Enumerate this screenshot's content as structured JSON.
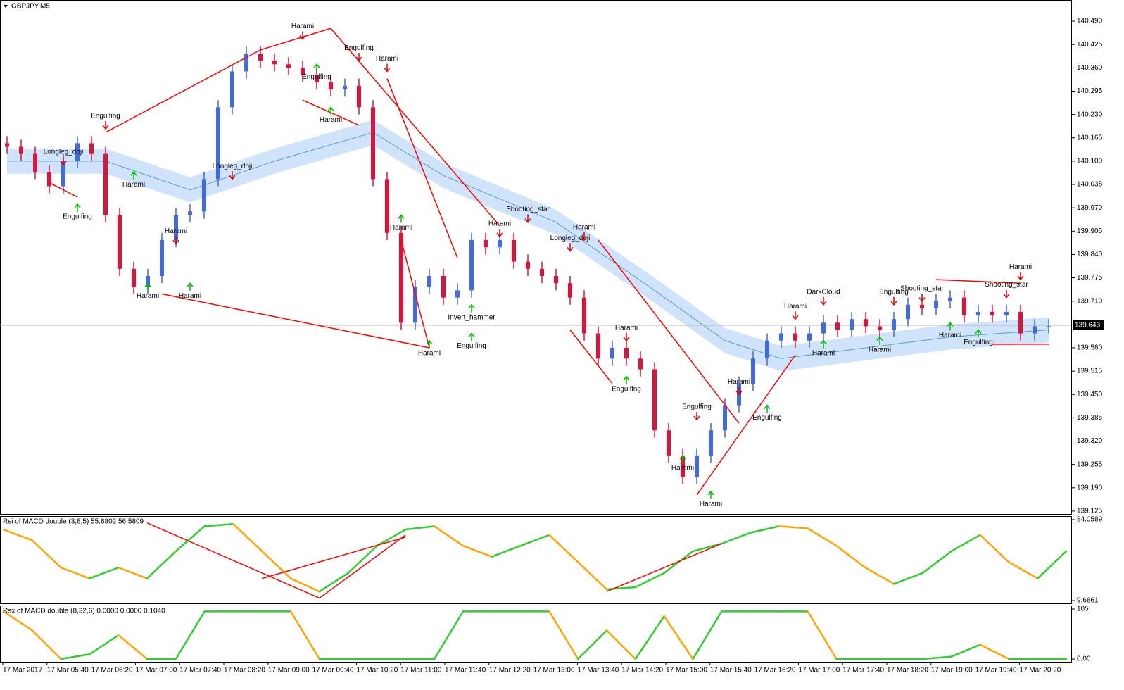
{
  "chart_data": [
    {
      "type": "candlestick",
      "title": "GBPJPY,M5",
      "ylim": [
        139.117,
        140.549
      ],
      "yticks": [
        {
          "value": 140.49,
          "label": "140.490"
        },
        {
          "value": 140.425,
          "label": "140.425"
        },
        {
          "value": 140.36,
          "label": "140.360"
        },
        {
          "value": 140.295,
          "label": "140.295"
        },
        {
          "value": 140.23,
          "label": "140.230"
        },
        {
          "value": 140.165,
          "label": "140.165"
        },
        {
          "value": 140.1,
          "label": "140.100"
        },
        {
          "value": 140.035,
          "label": "140.035"
        },
        {
          "value": 139.97,
          "label": "139.970"
        },
        {
          "value": 139.905,
          "label": "139.905"
        },
        {
          "value": 139.84,
          "label": "139.840"
        },
        {
          "value": 139.775,
          "label": "139.775"
        },
        {
          "value": 139.71,
          "label": "139.710"
        },
        {
          "value": 139.58,
          "label": "139.580"
        },
        {
          "value": 139.515,
          "label": "139.515"
        },
        {
          "value": 139.45,
          "label": "139.450"
        },
        {
          "value": 139.385,
          "label": "139.385"
        },
        {
          "value": 139.32,
          "label": "139.320"
        },
        {
          "value": 139.255,
          "label": "139.255"
        },
        {
          "value": 139.19,
          "label": "139.190"
        },
        {
          "value": 139.125,
          "label": "139.125"
        }
      ],
      "current_price": {
        "value": 139.643,
        "label": "139.643"
      },
      "up_color": "#4169e1",
      "down_color": "#dc143c",
      "candles": [
        [
          140.15,
          140.17,
          140.12,
          140.14
        ],
        [
          140.14,
          140.16,
          140.1,
          140.12
        ],
        [
          140.12,
          140.14,
          140.05,
          140.07
        ],
        [
          140.07,
          140.09,
          140.01,
          140.03
        ],
        [
          140.03,
          140.12,
          140.01,
          140.1
        ],
        [
          140.1,
          140.17,
          140.08,
          140.15
        ],
        [
          140.15,
          140.17,
          140.1,
          140.12
        ],
        [
          140.12,
          140.14,
          139.93,
          139.95
        ],
        [
          139.95,
          139.97,
          139.78,
          139.8
        ],
        [
          139.8,
          139.82,
          139.73,
          139.75
        ],
        [
          139.75,
          139.8,
          139.73,
          139.78
        ],
        [
          139.78,
          139.9,
          139.76,
          139.88
        ],
        [
          139.88,
          139.97,
          139.86,
          139.95
        ],
        [
          139.95,
          139.98,
          139.93,
          139.96
        ],
        [
          139.96,
          140.07,
          139.94,
          140.05
        ],
        [
          140.05,
          140.27,
          140.03,
          140.25
        ],
        [
          140.25,
          140.37,
          140.23,
          140.35
        ],
        [
          140.35,
          140.42,
          140.33,
          140.4
        ],
        [
          140.4,
          140.42,
          140.36,
          140.38
        ],
        [
          140.38,
          140.4,
          140.35,
          140.37
        ],
        [
          140.37,
          140.39,
          140.34,
          140.36
        ],
        [
          140.36,
          140.38,
          140.32,
          140.34
        ],
        [
          140.34,
          140.36,
          140.3,
          140.32
        ],
        [
          140.32,
          140.34,
          140.28,
          140.3
        ],
        [
          140.3,
          140.33,
          140.28,
          140.31
        ],
        [
          140.31,
          140.33,
          140.23,
          140.25
        ],
        [
          140.25,
          140.27,
          140.03,
          140.05
        ],
        [
          140.05,
          140.07,
          139.88,
          139.9
        ],
        [
          139.9,
          139.92,
          139.63,
          139.65
        ],
        [
          139.65,
          139.77,
          139.63,
          139.75
        ],
        [
          139.75,
          139.8,
          139.73,
          139.78
        ],
        [
          139.78,
          139.8,
          139.7,
          139.72
        ],
        [
          139.72,
          139.76,
          139.7,
          139.74
        ],
        [
          139.74,
          139.9,
          139.72,
          139.88
        ],
        [
          139.88,
          139.9,
          139.84,
          139.86
        ],
        [
          139.86,
          139.9,
          139.84,
          139.88
        ],
        [
          139.88,
          139.9,
          139.8,
          139.82
        ],
        [
          139.82,
          139.84,
          139.78,
          139.8
        ],
        [
          139.8,
          139.82,
          139.76,
          139.78
        ],
        [
          139.78,
          139.8,
          139.74,
          139.76
        ],
        [
          139.76,
          139.78,
          139.7,
          139.72
        ],
        [
          139.72,
          139.74,
          139.6,
          139.62
        ],
        [
          139.62,
          139.64,
          139.53,
          139.55
        ],
        [
          139.55,
          139.6,
          139.53,
          139.58
        ],
        [
          139.58,
          139.6,
          139.53,
          139.55
        ],
        [
          139.55,
          139.57,
          139.5,
          139.52
        ],
        [
          139.52,
          139.54,
          139.33,
          139.35
        ],
        [
          139.35,
          139.37,
          139.26,
          139.28
        ],
        [
          139.28,
          139.3,
          139.2,
          139.22
        ],
        [
          139.22,
          139.3,
          139.2,
          139.28
        ],
        [
          139.28,
          139.37,
          139.26,
          139.35
        ],
        [
          139.35,
          139.44,
          139.33,
          139.42
        ],
        [
          139.42,
          139.5,
          139.4,
          139.48
        ],
        [
          139.48,
          139.57,
          139.46,
          139.55
        ],
        [
          139.55,
          139.62,
          139.53,
          139.6
        ],
        [
          139.6,
          139.64,
          139.58,
          139.62
        ],
        [
          139.62,
          139.64,
          139.58,
          139.6
        ],
        [
          139.6,
          139.64,
          139.58,
          139.62
        ],
        [
          139.62,
          139.67,
          139.6,
          139.65
        ],
        [
          139.65,
          139.67,
          139.61,
          139.63
        ],
        [
          139.63,
          139.68,
          139.61,
          139.66
        ],
        [
          139.66,
          139.68,
          139.62,
          139.64
        ],
        [
          139.64,
          139.66,
          139.61,
          139.63
        ],
        [
          139.63,
          139.68,
          139.61,
          139.66
        ],
        [
          139.66,
          139.72,
          139.64,
          139.7
        ],
        [
          139.7,
          139.72,
          139.67,
          139.69
        ],
        [
          139.69,
          139.73,
          139.67,
          139.71
        ],
        [
          139.71,
          139.74,
          139.69,
          139.72
        ],
        [
          139.72,
          139.74,
          139.65,
          139.67
        ],
        [
          139.67,
          139.7,
          139.65,
          139.68
        ],
        [
          139.68,
          139.7,
          139.65,
          139.67
        ],
        [
          139.67,
          139.7,
          139.65,
          139.68
        ],
        [
          139.68,
          139.7,
          139.6,
          139.62
        ],
        [
          139.62,
          139.66,
          139.6,
          139.64
        ],
        [
          139.64,
          139.66,
          139.62,
          139.64
        ]
      ],
      "envelope": {
        "x": [
          0,
          7,
          13,
          19,
          26,
          31,
          39,
          46,
          51,
          55,
          61,
          67,
          74
        ],
        "middle": [
          140.1,
          140.1,
          140.02,
          140.1,
          140.18,
          140.06,
          139.93,
          139.74,
          139.6,
          139.55,
          139.58,
          139.61,
          139.63
        ],
        "upper": [
          140.135,
          140.135,
          140.055,
          140.135,
          140.215,
          140.095,
          139.965,
          139.775,
          139.635,
          139.585,
          139.615,
          139.645,
          139.665
        ],
        "lower": [
          140.065,
          140.065,
          139.985,
          140.065,
          140.145,
          140.025,
          139.895,
          139.705,
          139.565,
          139.515,
          139.545,
          139.575,
          139.595
        ],
        "color": "#cfe3fb",
        "line_color": "#5aa0c8"
      },
      "trendlines": [
        [
          7,
          140.18,
          18,
          140.41
        ],
        [
          18,
          140.41,
          23,
          140.47
        ],
        [
          23,
          140.47,
          35,
          139.92
        ],
        [
          27,
          140.33,
          32,
          139.83
        ],
        [
          11,
          139.73,
          30,
          139.58
        ],
        [
          30,
          139.58,
          28,
          139.88
        ],
        [
          42,
          139.88,
          52,
          139.37
        ],
        [
          40,
          139.63,
          43,
          139.48
        ],
        [
          49,
          139.17,
          56,
          139.56
        ],
        [
          66,
          139.77,
          72,
          139.76
        ],
        [
          70,
          139.59,
          74,
          139.59
        ],
        [
          3,
          140.04,
          5,
          140.0
        ],
        [
          21,
          140.27,
          25,
          140.2
        ]
      ],
      "trend_color": "#ff0000",
      "annotations": [
        {
          "text": "Engulfing",
          "i": 7,
          "price": 140.19,
          "dir": "down"
        },
        {
          "text": "Longleg_doji",
          "i": 4,
          "price": 140.09,
          "dir": "down"
        },
        {
          "text": "Engulfing",
          "i": 5,
          "price": 139.98,
          "dir": "up"
        },
        {
          "text": "Harami",
          "i": 9,
          "price": 140.07,
          "dir": "up"
        },
        {
          "text": "Longleg_doji",
          "i": 16,
          "price": 140.05,
          "dir": "down"
        },
        {
          "text": "Harami",
          "i": 12,
          "price": 139.87,
          "dir": "down"
        },
        {
          "text": "Harami",
          "i": 10,
          "price": 139.76,
          "dir": "up"
        },
        {
          "text": "Harami",
          "i": 13,
          "price": 139.76,
          "dir": "up"
        },
        {
          "text": "Harami",
          "i": 21,
          "price": 140.44,
          "dir": "down"
        },
        {
          "text": "Engulfing",
          "i": 22,
          "price": 140.37,
          "dir": "up"
        },
        {
          "text": "Engulfing",
          "i": 25,
          "price": 140.38,
          "dir": "down"
        },
        {
          "text": "Harami",
          "i": 27,
          "price": 140.35,
          "dir": "down"
        },
        {
          "text": "Harami",
          "i": 23,
          "price": 140.25,
          "dir": "up"
        },
        {
          "text": "Harami",
          "i": 28,
          "price": 139.95,
          "dir": "up"
        },
        {
          "text": "Harami",
          "i": 30,
          "price": 139.6,
          "dir": "up"
        },
        {
          "text": "Invert_hammer",
          "i": 33,
          "price": 139.7,
          "dir": "up"
        },
        {
          "text": "Engulfing",
          "i": 33,
          "price": 139.62,
          "dir": "up"
        },
        {
          "text": "Harami",
          "i": 35,
          "price": 139.89,
          "dir": "down"
        },
        {
          "text": "Shooting_star",
          "i": 37,
          "price": 139.93,
          "dir": "down"
        },
        {
          "text": "Longleg_doji",
          "i": 40,
          "price": 139.85,
          "dir": "down"
        },
        {
          "text": "Harami",
          "i": 41,
          "price": 139.88,
          "dir": "down"
        },
        {
          "text": "Harami",
          "i": 44,
          "price": 139.6,
          "dir": "down"
        },
        {
          "text": "Engulfing",
          "i": 44,
          "price": 139.5,
          "dir": "up"
        },
        {
          "text": "Engulfing",
          "i": 49,
          "price": 139.38,
          "dir": "down"
        },
        {
          "text": "Harami",
          "i": 48,
          "price": 139.28,
          "dir": "up"
        },
        {
          "text": "Harami",
          "i": 50,
          "price": 139.18,
          "dir": "up"
        },
        {
          "text": "Harami",
          "i": 52,
          "price": 139.45,
          "dir": "down"
        },
        {
          "text": "Engulfing",
          "i": 54,
          "price": 139.42,
          "dir": "up"
        },
        {
          "text": "Harami",
          "i": 56,
          "price": 139.66,
          "dir": "down"
        },
        {
          "text": "DarkCloud",
          "i": 58,
          "price": 139.7,
          "dir": "down"
        },
        {
          "text": "Harami",
          "i": 58,
          "price": 139.6,
          "dir": "up"
        },
        {
          "text": "Harami",
          "i": 62,
          "price": 139.61,
          "dir": "up"
        },
        {
          "text": "Engulfing",
          "i": 63,
          "price": 139.7,
          "dir": "down"
        },
        {
          "text": "Shooting_star",
          "i": 65,
          "price": 139.71,
          "dir": "down"
        },
        {
          "text": "Harami",
          "i": 67,
          "price": 139.65,
          "dir": "up"
        },
        {
          "text": "Engulfing",
          "i": 69,
          "price": 139.63,
          "dir": "up"
        },
        {
          "text": "Shooting_star",
          "i": 71,
          "price": 139.72,
          "dir": "down"
        },
        {
          "text": "Harami",
          "i": 72,
          "price": 139.77,
          "dir": "down"
        }
      ]
    },
    {
      "type": "line",
      "title": "Rsi of MACD double (3,8,5) 55.8802 56.5809",
      "ylim": [
        9.6861,
        84.0589
      ],
      "yticks": [
        84.0589,
        9.6861
      ],
      "values": [
        75,
        65,
        40,
        30,
        40,
        30,
        55,
        78,
        80,
        55,
        30,
        18,
        35,
        60,
        75,
        78,
        60,
        50,
        60,
        70,
        45,
        20,
        22,
        35,
        55,
        62,
        72,
        78,
        76,
        60,
        40,
        25,
        35,
        55,
        70,
        45,
        30,
        55
      ],
      "up_color": "#32cd32",
      "down_color": "#ffa500",
      "trendlines": [
        [
          5,
          81,
          11,
          12
        ],
        [
          11,
          12,
          14,
          70
        ],
        [
          9,
          30,
          14,
          68
        ],
        [
          21,
          18,
          25,
          62
        ]
      ],
      "trend_color": "#ff0000"
    },
    {
      "type": "line",
      "title": "Rsx of MACD double (8,32,6) 0.0000 0.0000 0.1040",
      "ylim": [
        0,
        105
      ],
      "yticks": [
        105,
        {
          "value": 0,
          "label": "0.00"
        }
      ],
      "values": [
        100,
        60,
        0,
        10,
        50,
        0,
        0,
        100,
        100,
        100,
        100,
        0,
        0,
        0,
        0,
        0,
        100,
        100,
        100,
        100,
        0,
        60,
        0,
        90,
        0,
        100,
        100,
        100,
        100,
        0,
        0,
        0,
        0,
        5,
        30,
        0,
        0,
        0
      ],
      "up_color": "#32cd32",
      "down_color": "#ffa500"
    }
  ],
  "time_axis": {
    "labels": [
      "17 Mar 2017",
      "17 Mar 05:40",
      "17 Mar 06:20",
      "17 Mar 07:00",
      "17 Mar 07:40",
      "17 Mar 08:20",
      "17 Mar 09:00",
      "17 Mar 09:40",
      "17 Mar 10:20",
      "17 Mar 11:00",
      "17 Mar 11:40",
      "17 Mar 12:20",
      "17 Mar 13:00",
      "17 Mar 13:40",
      "17 Mar 14:20",
      "17 Mar 15:00",
      "17 Mar 15:40",
      "17 Mar 16:20",
      "17 Mar 17:00",
      "17 Mar 17:40",
      "17 Mar 18:20",
      "17 Mar 19:00",
      "17 Mar 19:40",
      "17 Mar 20:20"
    ]
  }
}
